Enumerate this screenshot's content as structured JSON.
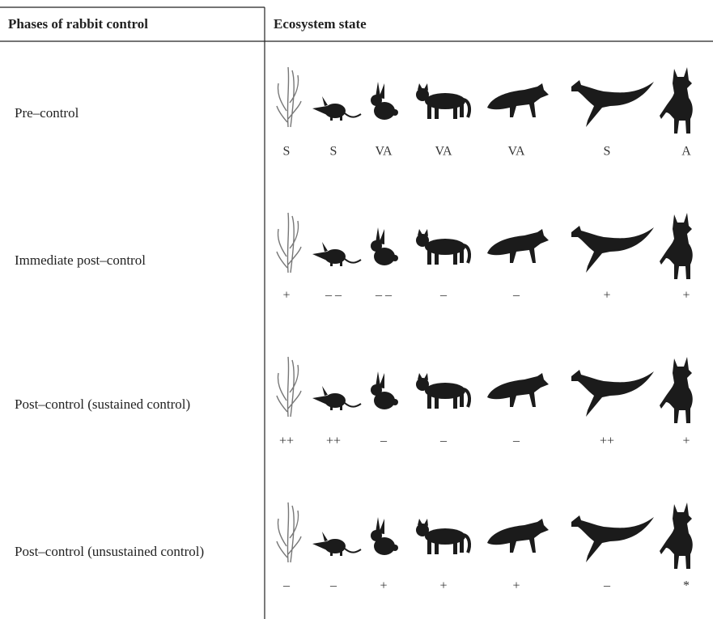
{
  "header": {
    "phase": "Phases of rabbit control",
    "state": "Ecosystem state"
  },
  "rows": [
    {
      "phase": "Pre–control",
      "states": [
        "S",
        "S",
        "VA",
        "VA",
        "VA",
        "S",
        "A"
      ]
    },
    {
      "phase": "Immediate post–control",
      "states": [
        "+",
        "– –",
        "– –",
        "–",
        "–",
        "+",
        "+"
      ]
    },
    {
      "phase": "Post–control (sustained control)",
      "states": [
        "++",
        "++",
        "–",
        "–",
        "–",
        "++",
        "+"
      ]
    },
    {
      "phase": "Post–control (unsustained control)",
      "states": [
        "–",
        "–",
        "+",
        "+",
        "+",
        "–",
        "*"
      ]
    }
  ]
}
